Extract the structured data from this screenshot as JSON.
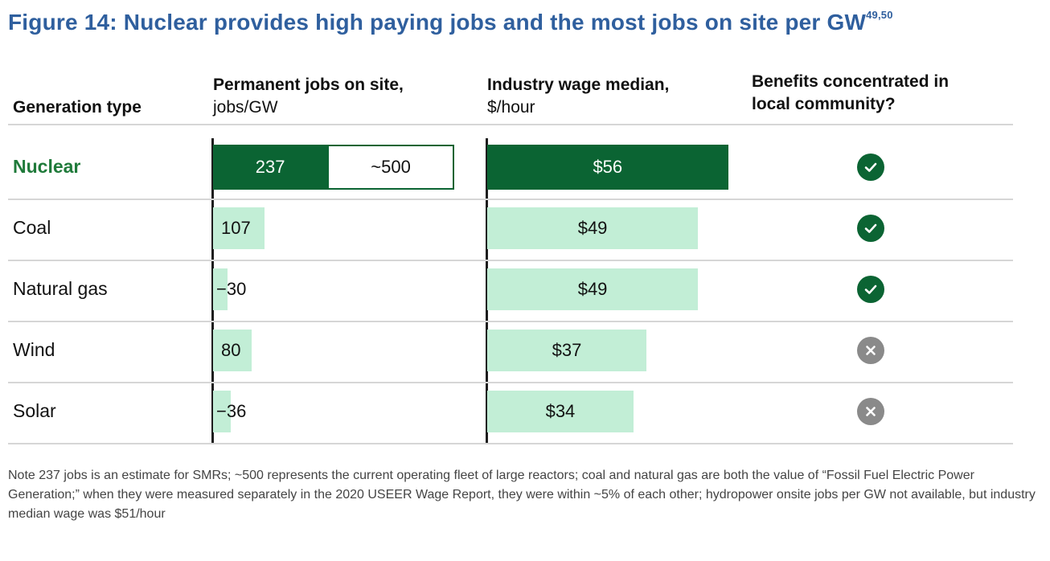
{
  "title": "Figure 14: Nuclear provides high paying jobs and the most jobs on site per GW",
  "title_superscript": "49,50",
  "headers": {
    "generation_type": "Generation type",
    "jobs_line1": "Permanent jobs on site,",
    "jobs_line2": "jobs/GW",
    "wage_line1": "Industry wage median,",
    "wage_line2": "$/hour",
    "benefits_line1": "Benefits concentrated in",
    "benefits_line2": "local community?"
  },
  "chart_data": {
    "type": "table",
    "columns": [
      "Generation type",
      "Permanent jobs on site, jobs/GW",
      "Industry wage median, $/hour",
      "Benefits concentrated in local community?"
    ],
    "rows": [
      {
        "name": "Nuclear",
        "jobs": 237,
        "jobs_label": "237",
        "jobs_extra": 500,
        "jobs_extra_label": "~500",
        "wage": 56,
        "wage_label": "$56",
        "benefit": true
      },
      {
        "name": "Coal",
        "jobs": 107,
        "jobs_label": "107",
        "wage": 49,
        "wage_label": "$49",
        "benefit": true
      },
      {
        "name": "Natural gas",
        "jobs": 30,
        "jobs_label": "30",
        "wage": 49,
        "wage_label": "$49",
        "benefit": true
      },
      {
        "name": "Wind",
        "jobs": 80,
        "jobs_label": "80",
        "wage": 37,
        "wage_label": "$37",
        "benefit": false
      },
      {
        "name": "Solar",
        "jobs": 36,
        "jobs_label": "36",
        "wage": 34,
        "wage_label": "$34",
        "benefit": false
      }
    ],
    "colors": {
      "highlight": "#0b6433",
      "bar": "#c2eed6",
      "yes": "#0b6433",
      "no": "#8a8a8a"
    }
  },
  "note": "Note 237 jobs is an estimate for SMRs; ~500 represents the current operating fleet of large reactors; coal and natural gas are both the value of “Fossil Fuel Electric Power Generation;” when they were measured separately in the 2020 USEER Wage Report, they were within ~5% of each other; hydropower onsite jobs per GW not available, but industry median wage was $51/hour"
}
